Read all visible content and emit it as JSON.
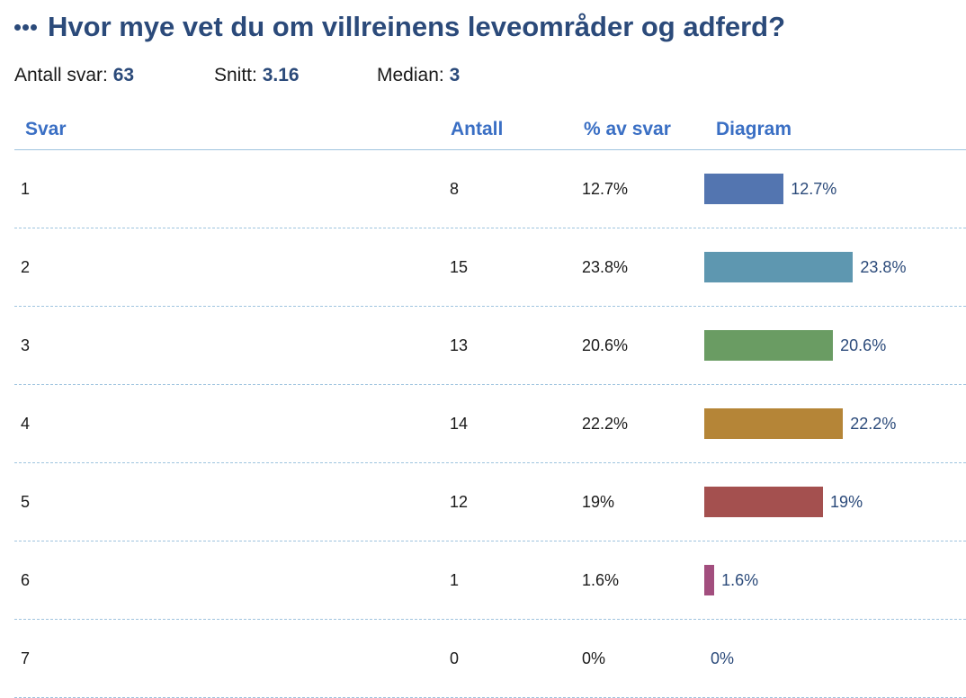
{
  "title": "Hvor mye vet du om villreinens leveområder og adferd?",
  "stats": {
    "count_label": "Antall svar:",
    "count_value": "63",
    "mean_label": "Snitt:",
    "mean_value": "3.16",
    "median_label": "Median:",
    "median_value": "3"
  },
  "columns": {
    "answer": "Svar",
    "count": "Antall",
    "percent": "% av svar",
    "diagram": "Diagram"
  },
  "chart_data": {
    "type": "bar",
    "orientation": "horizontal",
    "categories": [
      "1",
      "2",
      "3",
      "4",
      "5",
      "6",
      "7"
    ],
    "counts": [
      8,
      15,
      13,
      14,
      12,
      1,
      0
    ],
    "values": [
      12.7,
      23.8,
      20.6,
      22.2,
      19,
      1.6,
      0
    ],
    "value_labels": [
      "12.7%",
      "23.8%",
      "20.6%",
      "22.2%",
      "19%",
      "1.6%",
      "0%"
    ],
    "colors": [
      "#5375b0",
      "#5e97b0",
      "#6a9c63",
      "#b58537",
      "#a4504f",
      "#a24e7e",
      "#8a8a8a"
    ],
    "title": "Hvor mye vet du om villreinens leveområder og adferd?",
    "xlabel": "",
    "ylabel": "",
    "xlim": [
      0,
      100
    ]
  }
}
